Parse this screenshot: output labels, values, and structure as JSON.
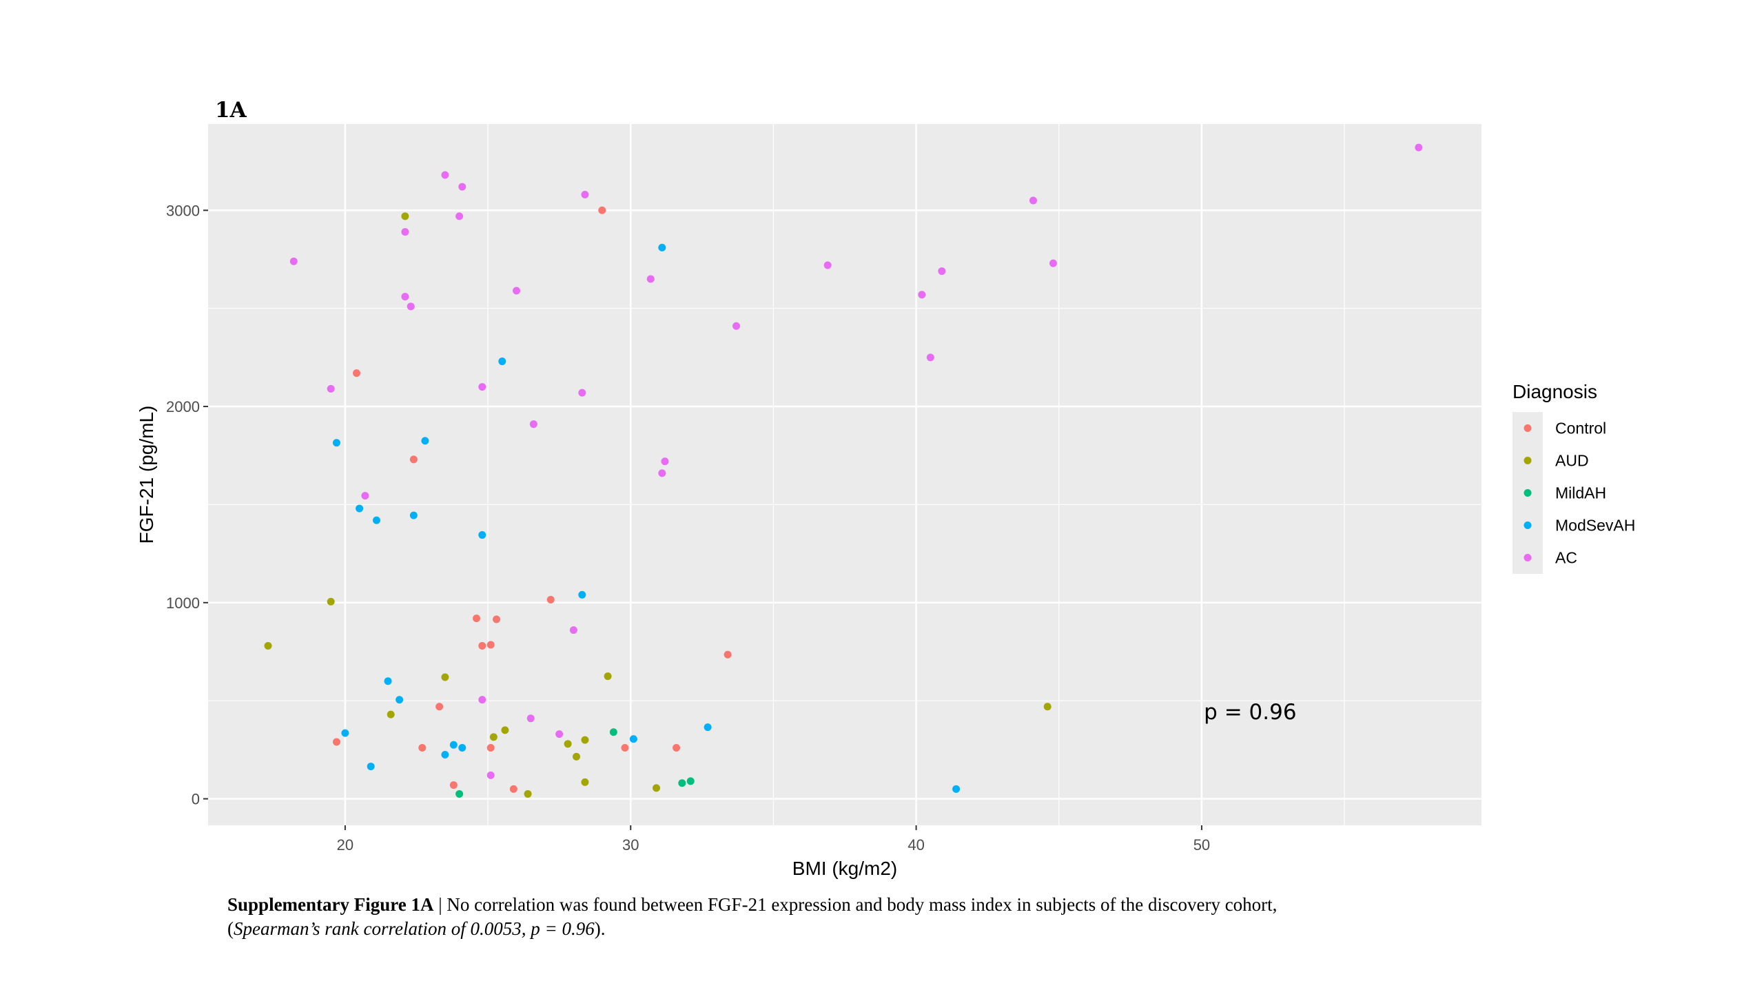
{
  "panel_label": "1A",
  "caption": {
    "bold": "Supplementary Figure 1A",
    "separator": " | ",
    "text": "No correlation was found between FGF-21 expression and body mass index in subjects of the discovery cohort,",
    "line2_open": "(",
    "line2_italic": "Spearman’s rank correlation of 0.0053, p = 0.96",
    "line2_close": ")."
  },
  "colors": {
    "panel_bg": "#ebebeb",
    "grid": "#ffffff",
    "Control": "#F8766D",
    "AUD": "#A3A500",
    "MildAH": "#00BF7D",
    "ModSevAH": "#00B0F6",
    "AC": "#E76BF3"
  },
  "chart_data": {
    "type": "scatter",
    "xlabel": "BMI (kg/m2)",
    "ylabel": "FGF-21 (pg/mL)",
    "xlim": [
      15.2,
      59.8
    ],
    "ylim": [
      -135,
      3440
    ],
    "xticks": [
      20,
      30,
      40,
      50
    ],
    "yticks": [
      0,
      1000,
      2000,
      3000
    ],
    "grid": true,
    "legend_title": "Diagnosis",
    "legend_position": "right",
    "annotation": "p = 0.96",
    "annotation_pos": [
      51.7,
      445
    ],
    "series": [
      {
        "name": "Control",
        "points": [
          [
            20.4,
            2170
          ],
          [
            29.0,
            3000
          ],
          [
            22.4,
            1730
          ],
          [
            27.2,
            1015
          ],
          [
            24.6,
            920
          ],
          [
            25.3,
            915
          ],
          [
            24.8,
            780
          ],
          [
            25.1,
            785
          ],
          [
            33.4,
            735
          ],
          [
            23.3,
            470
          ],
          [
            19.7,
            290
          ],
          [
            22.7,
            260
          ],
          [
            25.1,
            260
          ],
          [
            29.8,
            260
          ],
          [
            31.6,
            260
          ],
          [
            23.8,
            70
          ],
          [
            25.9,
            50
          ]
        ]
      },
      {
        "name": "AUD",
        "points": [
          [
            22.1,
            2970
          ],
          [
            19.5,
            1005
          ],
          [
            17.3,
            780
          ],
          [
            23.5,
            620
          ],
          [
            29.2,
            625
          ],
          [
            21.6,
            430
          ],
          [
            25.2,
            315
          ],
          [
            25.6,
            350
          ],
          [
            27.8,
            280
          ],
          [
            28.4,
            300
          ],
          [
            28.1,
            215
          ],
          [
            44.6,
            470
          ],
          [
            28.4,
            85
          ],
          [
            30.9,
            55
          ],
          [
            26.4,
            25
          ]
        ]
      },
      {
        "name": "MildAH",
        "points": [
          [
            29.4,
            340
          ],
          [
            31.8,
            80
          ],
          [
            32.1,
            90
          ],
          [
            24.0,
            25
          ]
        ]
      },
      {
        "name": "ModSevAH",
        "points": [
          [
            31.1,
            2810
          ],
          [
            25.5,
            2230
          ],
          [
            19.7,
            1815
          ],
          [
            22.8,
            1825
          ],
          [
            20.5,
            1480
          ],
          [
            21.1,
            1420
          ],
          [
            22.4,
            1445
          ],
          [
            24.8,
            1345
          ],
          [
            28.3,
            1040
          ],
          [
            21.5,
            600
          ],
          [
            21.9,
            505
          ],
          [
            20.0,
            335
          ],
          [
            23.8,
            275
          ],
          [
            24.1,
            260
          ],
          [
            23.5,
            225
          ],
          [
            32.7,
            365
          ],
          [
            30.1,
            305
          ],
          [
            20.9,
            165
          ],
          [
            41.4,
            50
          ]
        ]
      },
      {
        "name": "AC",
        "points": [
          [
            23.5,
            3180
          ],
          [
            24.1,
            3120
          ],
          [
            28.4,
            3080
          ],
          [
            57.6,
            3320
          ],
          [
            44.1,
            3050
          ],
          [
            22.1,
            2890
          ],
          [
            24.0,
            2970
          ],
          [
            18.2,
            2740
          ],
          [
            36.9,
            2720
          ],
          [
            44.8,
            2730
          ],
          [
            40.9,
            2690
          ],
          [
            30.7,
            2650
          ],
          [
            26.0,
            2590
          ],
          [
            40.2,
            2570
          ],
          [
            22.1,
            2560
          ],
          [
            22.3,
            2510
          ],
          [
            33.7,
            2410
          ],
          [
            40.5,
            2250
          ],
          [
            19.5,
            2090
          ],
          [
            24.8,
            2100
          ],
          [
            28.3,
            2070
          ],
          [
            26.6,
            1910
          ],
          [
            31.2,
            1720
          ],
          [
            31.1,
            1660
          ],
          [
            20.7,
            1545
          ],
          [
            28.0,
            860
          ],
          [
            24.8,
            505
          ],
          [
            26.5,
            410
          ],
          [
            27.5,
            330
          ],
          [
            25.1,
            120
          ]
        ]
      }
    ]
  }
}
